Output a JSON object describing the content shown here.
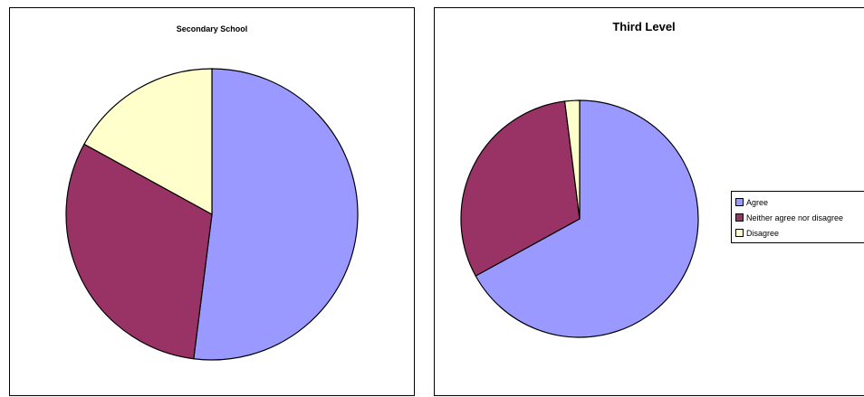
{
  "chart_data": [
    {
      "type": "pie",
      "title": "Secondary School",
      "categories": [
        "Agree",
        "Neither agree nor disagree",
        "Disagree"
      ],
      "values": [
        52,
        31,
        17
      ],
      "colors": [
        "#9999ff",
        "#993366",
        "#ffffcc"
      ]
    },
    {
      "type": "pie",
      "title": "Third Level",
      "categories": [
        "Agree",
        "Neither agree nor disagree",
        "Disagree"
      ],
      "values": [
        67,
        31,
        2
      ],
      "colors": [
        "#9999ff",
        "#993366",
        "#ffffcc"
      ],
      "legend": {
        "position": "right",
        "entries": [
          "Agree",
          "Neither agree nor disagree",
          "Disagree"
        ]
      }
    }
  ]
}
